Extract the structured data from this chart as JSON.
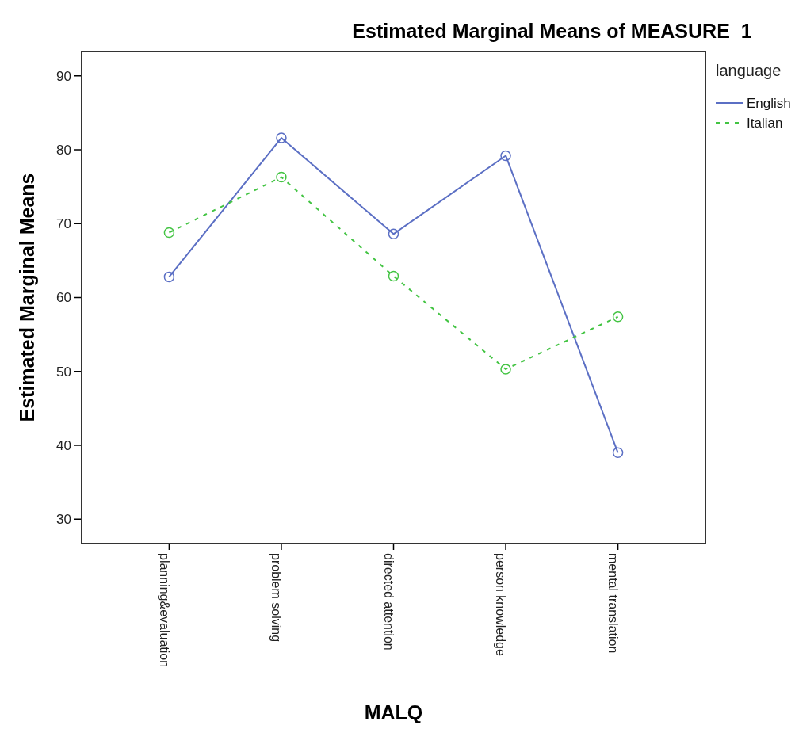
{
  "chart_data": {
    "type": "line",
    "title": "Estimated Marginal Means of MEASURE_1",
    "xlabel": "MALQ",
    "ylabel": "Estimated Marginal Means",
    "legend_title": "language",
    "categories": [
      "planning&evaluation",
      "problem solving",
      "directed attention",
      "person knowledge",
      "mental translation"
    ],
    "series": [
      {
        "name": "English",
        "color": "#5b6fc4",
        "values": [
          62.8,
          81.6,
          68.6,
          79.2,
          39.0
        ],
        "line_style": "solid"
      },
      {
        "name": "Italian",
        "color": "#43c443",
        "values": [
          68.8,
          76.3,
          62.9,
          50.3,
          57.4
        ],
        "line_style": "dashed"
      }
    ],
    "ylim": [
      26.7,
      93.3
    ],
    "yticks": [
      30,
      40,
      50,
      60,
      70,
      80,
      90
    ],
    "marker": "circle",
    "legend": "right",
    "grid": false
  }
}
